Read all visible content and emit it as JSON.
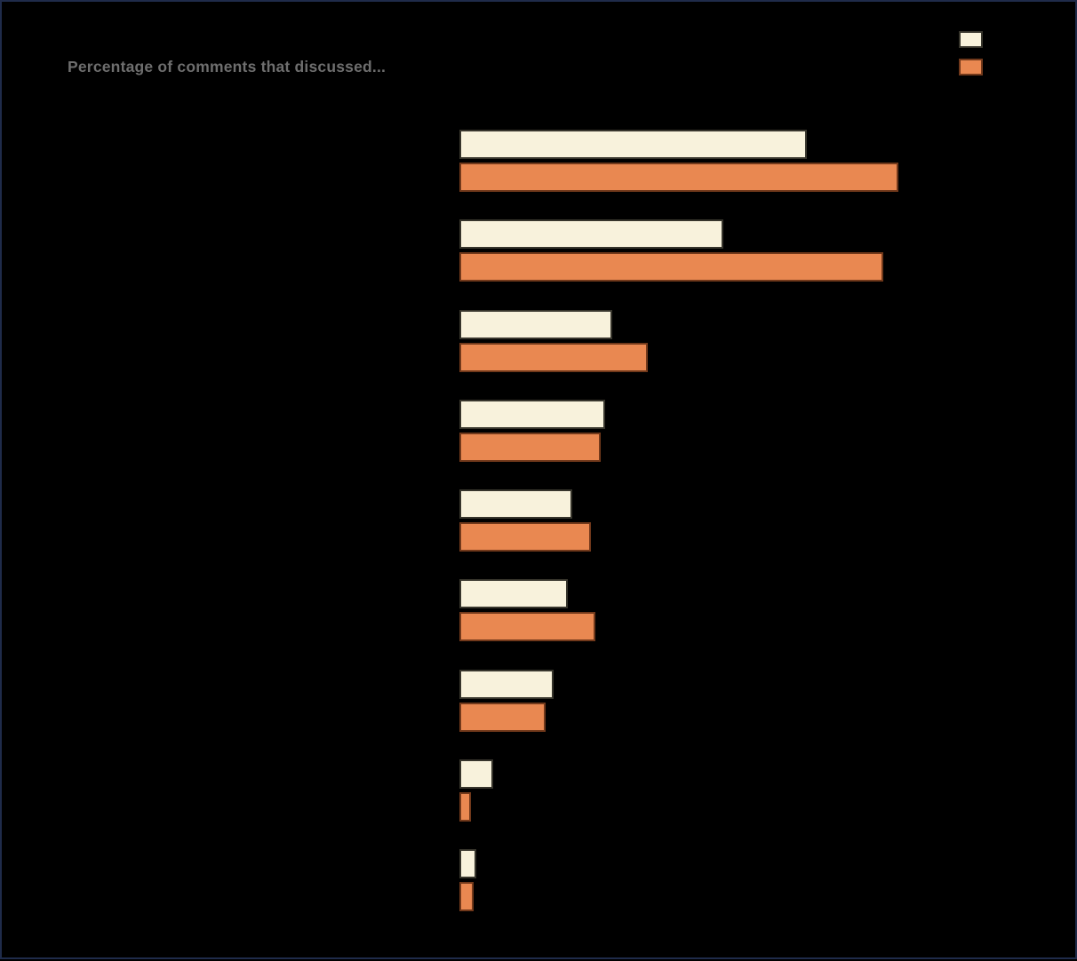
{
  "subtitle": "Percentage of comments that discussed...",
  "colors": {
    "background": "#000000",
    "frame_border": "#1F2B4A",
    "subtitle_text": "#6E6E6E",
    "series1_fill": "#F8F2DC",
    "series1_border": "#37352C",
    "series2_fill": "#E98851",
    "series2_border": "#72391B"
  },
  "legend": {
    "items": [
      {
        "label": "",
        "color": "#F8F2DC",
        "border": "#37352C"
      },
      {
        "label": "",
        "color": "#E98851",
        "border": "#72391B"
      }
    ]
  },
  "chart_data": {
    "type": "bar",
    "orientation": "horizontal",
    "title": "",
    "subtitle": "Percentage of comments that discussed...",
    "xlabel": "",
    "ylabel": "",
    "xlim": [
      0,
      50
    ],
    "grid": false,
    "legend_position": "top-right",
    "categories": [
      "",
      "",
      "",
      "",
      "",
      "",
      "",
      "",
      ""
    ],
    "series": [
      {
        "name": "",
        "color": "#F8F2DC",
        "values": [
          39.6,
          30.1,
          17.4,
          16.6,
          12.9,
          12.3,
          10.7,
          3.8,
          1.9
        ]
      },
      {
        "name": "",
        "color": "#E98851",
        "values": [
          50.0,
          48.3,
          21.5,
          16.1,
          15.0,
          15.5,
          9.8,
          1.3,
          1.6
        ]
      }
    ]
  }
}
